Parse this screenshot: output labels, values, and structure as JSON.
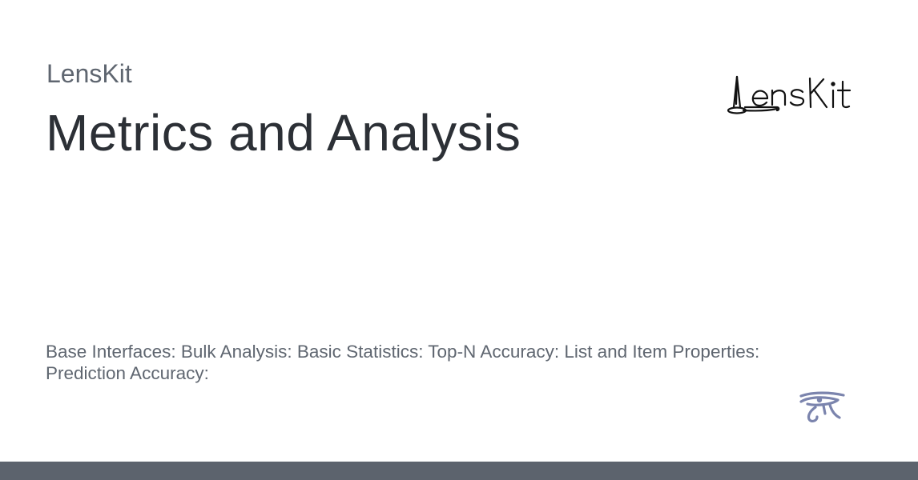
{
  "header": {
    "site_name": "LensKit",
    "page_title": "Metrics and Analysis"
  },
  "logo": {
    "wordmark": "LensKit",
    "icon": "lenskit-logo"
  },
  "description": "Base Interfaces: Bulk Analysis: Basic Statistics: Top-N Accuracy: List and Item Properties: Prediction Accuracy:",
  "footer": {
    "icon": "eye-of-horus-icon"
  },
  "colors": {
    "background": "#ffffff",
    "title_text": "#2c3036",
    "muted_text": "#5f6670",
    "eye_icon": "#7b84ad",
    "footer_bar": "#5c636d"
  }
}
